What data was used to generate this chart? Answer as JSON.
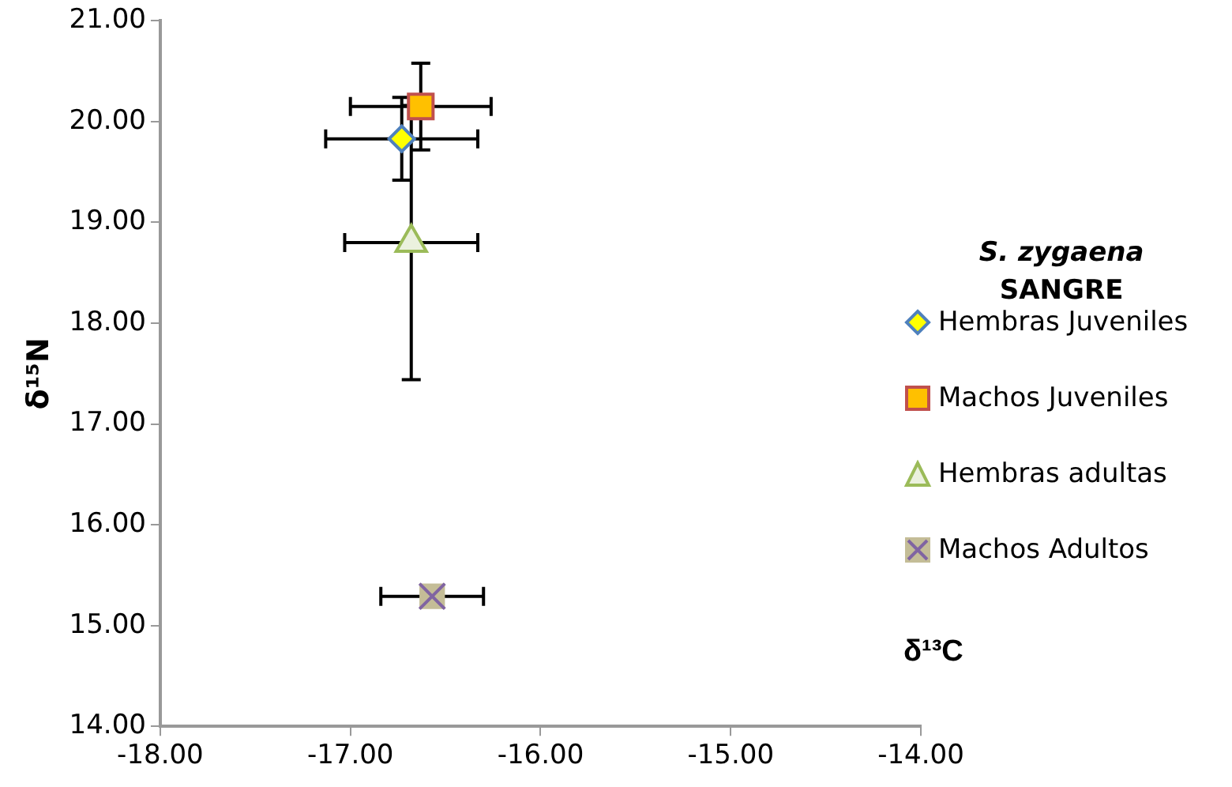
{
  "chart_data": {
    "type": "scatter",
    "xlabel": "δ¹³C",
    "ylabel": "δ¹⁵N",
    "legend_title": "S. zygaena\nSANGRE",
    "legend": "right",
    "xlim": [
      -18,
      -14
    ],
    "xticks": [
      {
        "value": -18,
        "label": "-18.00"
      },
      {
        "value": -17,
        "label": "-17.00"
      },
      {
        "value": -16,
        "label": "-16.00"
      },
      {
        "value": -15,
        "label": "-15.00"
      },
      {
        "value": -14,
        "label": "-14.00"
      }
    ],
    "ylim": [
      14,
      21
    ],
    "yticks": [
      {
        "value": 14,
        "label": "14.00"
      },
      {
        "value": 15,
        "label": "15.00"
      },
      {
        "value": 16,
        "label": "16.00"
      },
      {
        "value": 17,
        "label": "17.00"
      },
      {
        "value": 18,
        "label": "18.00"
      },
      {
        "value": 19,
        "label": "19.00"
      },
      {
        "value": 20,
        "label": "20.00"
      },
      {
        "value": 21,
        "label": "21.00"
      }
    ],
    "grid": false,
    "series": [
      {
        "name": "Hembras Juveniles",
        "color": "#ffff00",
        "marker": "diamond",
        "x": [
          -16.73
        ],
        "values": [
          19.83
        ],
        "errors": [
          0.41
        ],
        "xerrors": [
          0.4
        ]
      },
      {
        "name": "Machos Juveniles",
        "color": "#ffc000",
        "marker": "square",
        "x": [
          -16.63
        ],
        "values": [
          20.15
        ],
        "errors": [
          0.43
        ],
        "xerrors": [
          0.37
        ]
      },
      {
        "name": "Hembras adultas",
        "color": "#9bbb59",
        "marker": "triangle",
        "x": [
          -16.68
        ],
        "values": [
          18.8
        ],
        "errors": [
          1.36
        ],
        "xerrors": [
          0.35
        ]
      },
      {
        "name": "Machos Adultos",
        "color": "#8064a2",
        "marker": "cross",
        "x": [
          -16.57
        ],
        "values": [
          15.29
        ],
        "errors": [
          null
        ],
        "xerrors": [
          0.27
        ]
      }
    ]
  }
}
